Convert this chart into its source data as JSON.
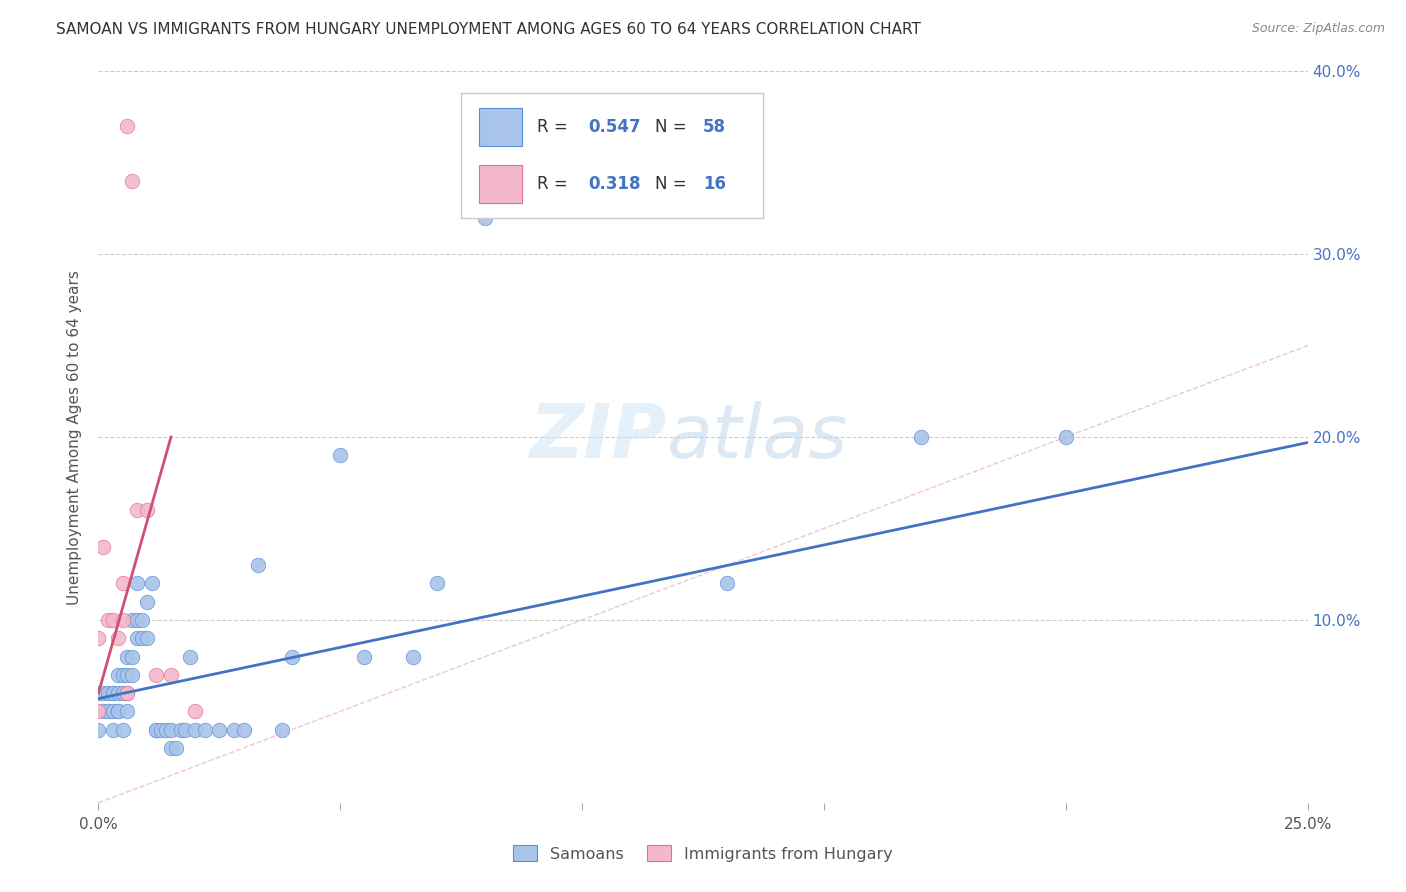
{
  "title": "SAMOAN VS IMMIGRANTS FROM HUNGARY UNEMPLOYMENT AMONG AGES 60 TO 64 YEARS CORRELATION CHART",
  "source": "Source: ZipAtlas.com",
  "ylabel": "Unemployment Among Ages 60 to 64 years",
  "xlim": [
    0.0,
    0.25
  ],
  "ylim": [
    0.0,
    0.4
  ],
  "xticks": [
    0.0,
    0.05,
    0.1,
    0.15,
    0.2,
    0.25
  ],
  "yticks": [
    0.0,
    0.1,
    0.2,
    0.3,
    0.4
  ],
  "xtick_labels": [
    "0.0%",
    "",
    "",
    "",
    "",
    "25.0%"
  ],
  "ytick_labels_right": [
    "",
    "10.0%",
    "20.0%",
    "30.0%",
    "40.0%"
  ],
  "blue_color": "#a8c4e8",
  "pink_color": "#f4b8cc",
  "blue_edge_color": "#5b8fd4",
  "pink_edge_color": "#e07090",
  "blue_line_color": "#4472c4",
  "pink_line_color": "#d05070",
  "legend_text_color": "#4472c4",
  "legend_box_edge": "#cccccc",
  "samoans_x": [
    0.0,
    0.0,
    0.001,
    0.001,
    0.002,
    0.002,
    0.003,
    0.003,
    0.003,
    0.003,
    0.004,
    0.004,
    0.004,
    0.004,
    0.005,
    0.005,
    0.005,
    0.006,
    0.006,
    0.006,
    0.006,
    0.007,
    0.007,
    0.007,
    0.008,
    0.008,
    0.008,
    0.009,
    0.009,
    0.01,
    0.01,
    0.011,
    0.012,
    0.012,
    0.013,
    0.014,
    0.015,
    0.015,
    0.016,
    0.017,
    0.018,
    0.019,
    0.02,
    0.022,
    0.025,
    0.028,
    0.03,
    0.033,
    0.038,
    0.04,
    0.05,
    0.055,
    0.065,
    0.07,
    0.08,
    0.13,
    0.17,
    0.2
  ],
  "samoans_y": [
    0.04,
    0.06,
    0.05,
    0.06,
    0.05,
    0.06,
    0.04,
    0.05,
    0.06,
    0.06,
    0.05,
    0.05,
    0.06,
    0.07,
    0.04,
    0.06,
    0.07,
    0.05,
    0.06,
    0.07,
    0.08,
    0.07,
    0.08,
    0.1,
    0.09,
    0.1,
    0.12,
    0.09,
    0.1,
    0.09,
    0.11,
    0.12,
    0.04,
    0.04,
    0.04,
    0.04,
    0.04,
    0.03,
    0.03,
    0.04,
    0.04,
    0.08,
    0.04,
    0.04,
    0.04,
    0.04,
    0.04,
    0.13,
    0.04,
    0.08,
    0.19,
    0.08,
    0.08,
    0.12,
    0.32,
    0.12,
    0.2,
    0.2
  ],
  "hungary_x": [
    0.0,
    0.0,
    0.001,
    0.002,
    0.003,
    0.004,
    0.005,
    0.005,
    0.006,
    0.006,
    0.007,
    0.008,
    0.01,
    0.012,
    0.015,
    0.02
  ],
  "hungary_y": [
    0.05,
    0.09,
    0.14,
    0.1,
    0.1,
    0.09,
    0.12,
    0.1,
    0.06,
    0.37,
    0.34,
    0.16,
    0.16,
    0.07,
    0.07,
    0.05
  ],
  "blue_trend_x": [
    0.0,
    0.25
  ],
  "blue_trend_y": [
    0.057,
    0.197
  ],
  "pink_trend_x": [
    0.0,
    0.015
  ],
  "pink_trend_y": [
    0.06,
    0.2
  ],
  "ref_line_x": [
    0.0,
    0.4
  ],
  "ref_line_y": [
    0.0,
    0.4
  ],
  "watermark_part1": "ZIP",
  "watermark_part2": "atlas",
  "background_color": "#ffffff",
  "grid_color": "#cccccc",
  "title_fontsize": 11,
  "axis_label_fontsize": 11,
  "tick_fontsize": 11,
  "scatter_size": 110
}
